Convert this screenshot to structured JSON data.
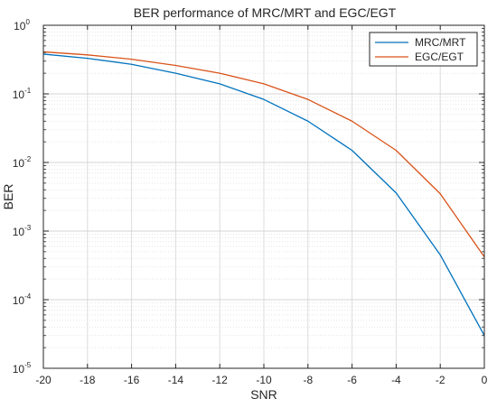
{
  "chart_data": {
    "type": "line",
    "title": "BER performance of MRC/MRT and EGC/EGT",
    "xlabel": "SNR",
    "ylabel": "BER",
    "xlim": [
      -20,
      0
    ],
    "ylim": [
      1e-05,
      1
    ],
    "yscale": "log",
    "grid": true,
    "legend_position": "top-right",
    "x": [
      -20,
      -18,
      -16,
      -14,
      -12,
      -10,
      -8,
      -6,
      -4,
      -2,
      0
    ],
    "series": [
      {
        "name": "MRC/MRT",
        "color": "#0072BD",
        "values": [
          0.38,
          0.33,
          0.27,
          0.2,
          0.14,
          0.083,
          0.04,
          0.015,
          0.0036,
          0.00045,
          3e-05
        ]
      },
      {
        "name": "EGC/EGT",
        "color": "#D95319",
        "values": [
          0.41,
          0.37,
          0.32,
          0.26,
          0.2,
          0.14,
          0.083,
          0.04,
          0.015,
          0.0035,
          0.00042
        ]
      }
    ],
    "xticks": [
      "-20",
      "-18",
      "-16",
      "-14",
      "-12",
      "-10",
      "-8",
      "-6",
      "-4",
      "-2",
      "0"
    ],
    "yticks": [
      {
        "base": "10",
        "exp": "0",
        "value": 1
      },
      {
        "base": "10",
        "exp": "-1",
        "value": 0.1
      },
      {
        "base": "10",
        "exp": "-2",
        "value": 0.01
      },
      {
        "base": "10",
        "exp": "-3",
        "value": 0.001
      },
      {
        "base": "10",
        "exp": "-4",
        "value": 0.0001
      },
      {
        "base": "10",
        "exp": "-5",
        "value": 1e-05
      }
    ]
  }
}
